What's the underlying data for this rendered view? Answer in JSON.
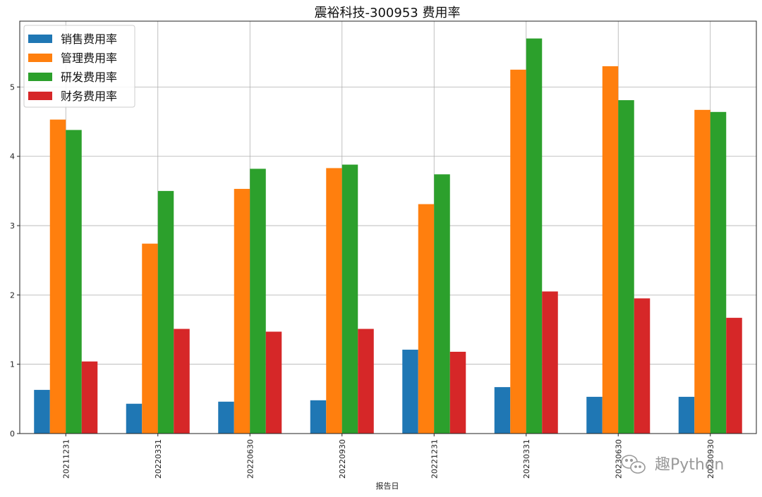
{
  "chart_data": {
    "type": "bar",
    "title": "震裕科技-300953 费用率",
    "xlabel": "报告日",
    "ylabel": "",
    "ylim": [
      0,
      5.95
    ],
    "yticks": [
      0,
      1,
      2,
      3,
      4,
      5
    ],
    "grid": true,
    "legend_position": "top-left",
    "categories": [
      "20211231",
      "20220331",
      "20220630",
      "20220930",
      "20221231",
      "20230331",
      "20230630",
      "20230930"
    ],
    "series": [
      {
        "name": "销售费用率",
        "color": "#1f77b4",
        "values": [
          0.63,
          0.43,
          0.46,
          0.48,
          1.21,
          0.67,
          0.53,
          0.53
        ]
      },
      {
        "name": "管理费用率",
        "color": "#ff7f0e",
        "values": [
          4.53,
          2.74,
          3.53,
          3.83,
          3.31,
          5.25,
          5.3,
          4.67
        ]
      },
      {
        "name": "研发费用率",
        "color": "#2ca02c",
        "values": [
          4.38,
          3.5,
          3.82,
          3.88,
          3.74,
          5.7,
          4.81,
          4.64
        ]
      },
      {
        "name": "财务费用率",
        "color": "#d62728",
        "values": [
          1.04,
          1.51,
          1.47,
          1.51,
          1.18,
          2.05,
          1.95,
          1.67
        ]
      }
    ]
  },
  "watermark": {
    "text": "趣Python",
    "icon": "wechat-icon"
  }
}
